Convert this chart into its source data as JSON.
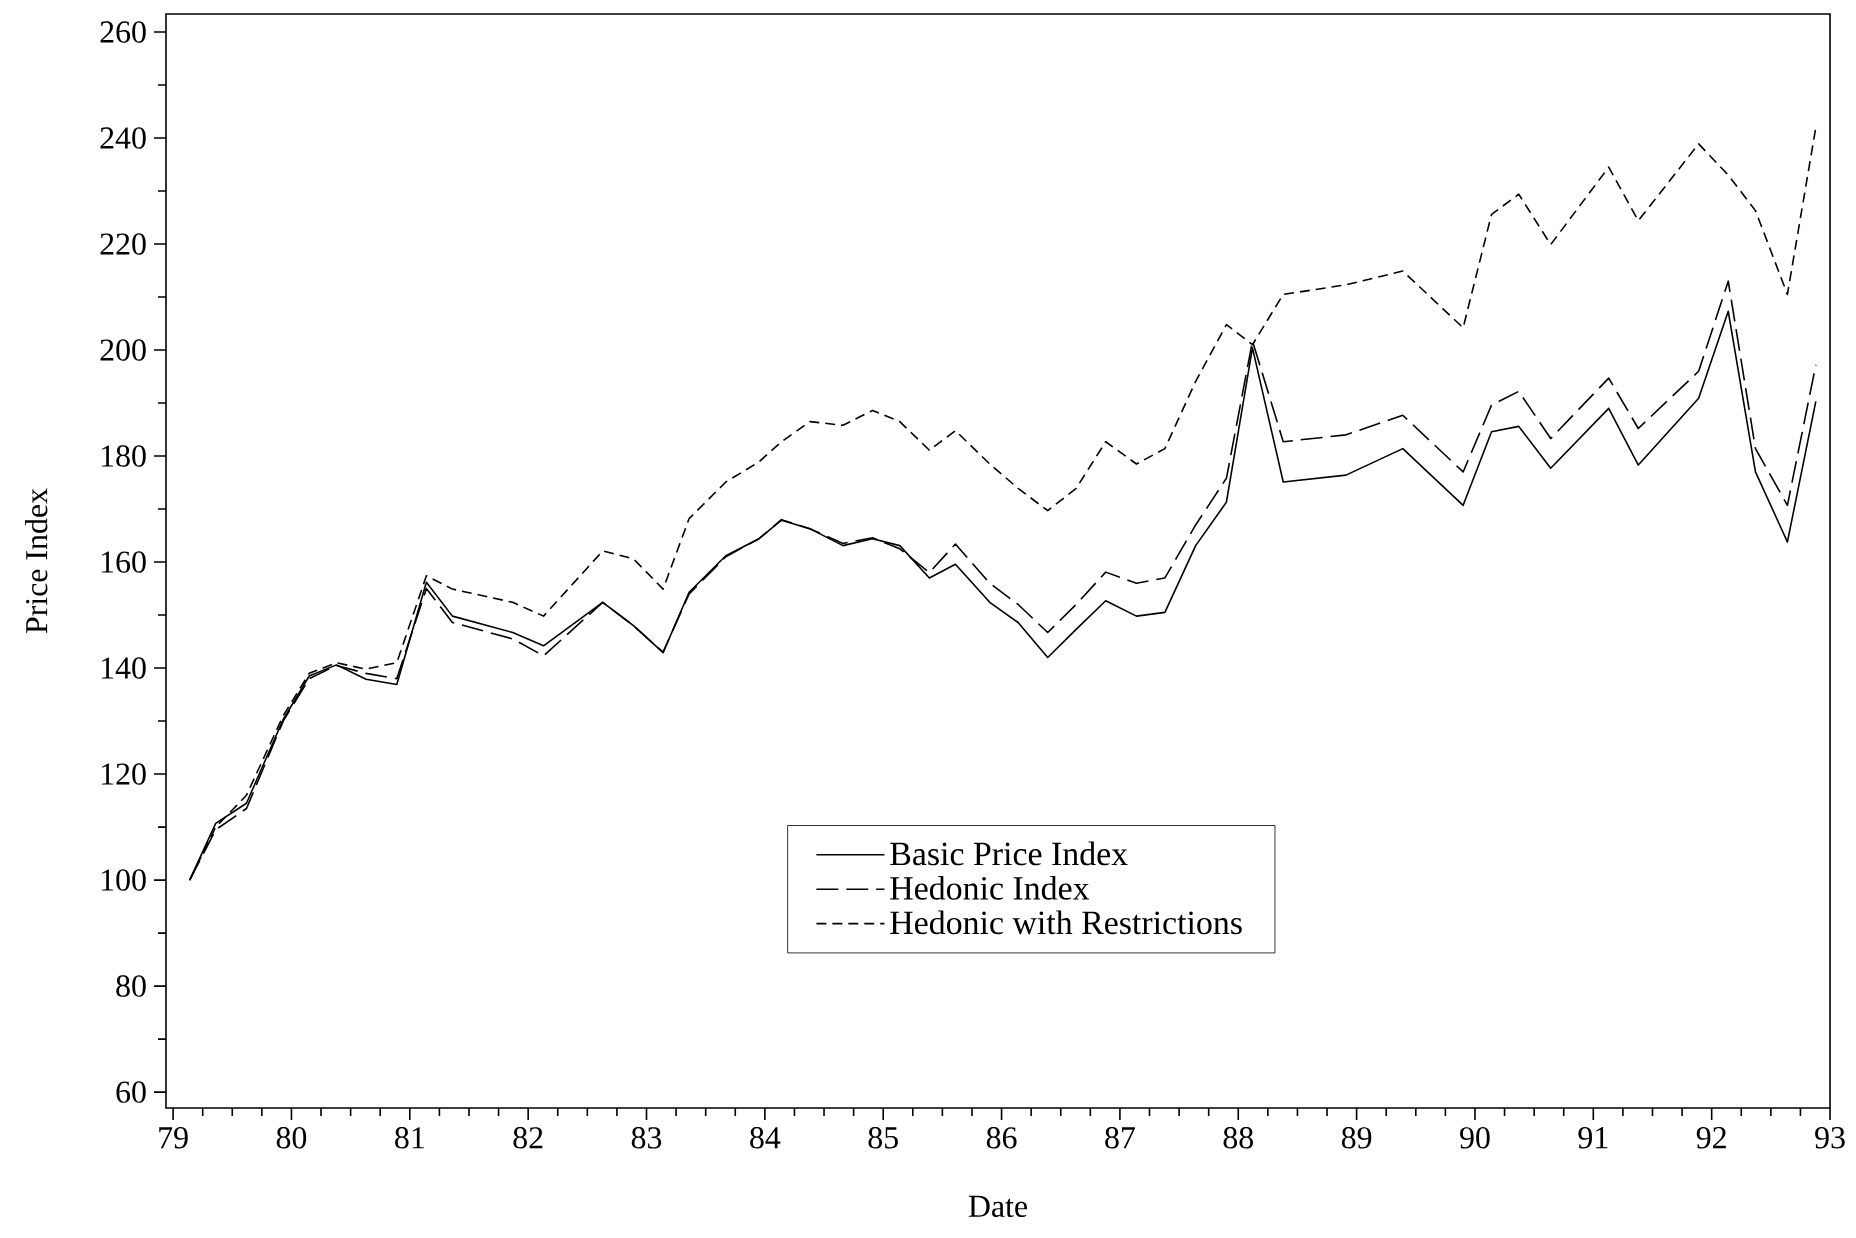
{
  "chart_data": {
    "type": "line",
    "xlabel": "Date",
    "ylabel": "Price Index",
    "x": [
      79.14,
      79.36,
      79.62,
      79.93,
      80.15,
      80.38,
      80.63,
      80.89,
      81.14,
      81.36,
      81.87,
      82.13,
      82.63,
      82.89,
      83.14,
      83.36,
      83.67,
      83.95,
      84.14,
      84.38,
      84.66,
      84.91,
      85.14,
      85.39,
      85.61,
      85.9,
      86.14,
      86.39,
      86.63,
      86.88,
      87.14,
      87.38,
      87.64,
      87.9,
      88.12,
      88.38,
      88.91,
      89.39,
      89.9,
      90.14,
      90.37,
      90.64,
      91.13,
      91.38,
      91.89,
      92.14,
      92.37,
      92.64,
      92.88
    ],
    "series": [
      {
        "name": "Basic Price Index",
        "color": "#000000",
        "line_style": "solid",
        "values": [
          100,
          110.7,
          114.5,
          130.3,
          138.5,
          140.6,
          137.9,
          136.9,
          156.2,
          149.8,
          146.7,
          144.2,
          152.4,
          148,
          142.9,
          154.3,
          161.2,
          164.4,
          167.9,
          166.3,
          163.1,
          164.4,
          163.1,
          157,
          159.6,
          152.4,
          148.6,
          142,
          147.3,
          152.7,
          149.8,
          150.5,
          163.1,
          171.3,
          200.4,
          175.1,
          176.4,
          181.4,
          170.7,
          184.6,
          185.6,
          177.7,
          189,
          178.3,
          190.9,
          207.3,
          177,
          163.8,
          190.3
        ]
      },
      {
        "name": "Hedonic Index",
        "color": "#000000",
        "line_style": "long dashed",
        "values": [
          100,
          109.5,
          113.5,
          130,
          138,
          140.5,
          139,
          138,
          155,
          148.6,
          145.5,
          142.3,
          152.4,
          148,
          143,
          154,
          161,
          164.4,
          168,
          166.3,
          163.5,
          164.6,
          162.5,
          158,
          163.4,
          156,
          152,
          146.7,
          152,
          158.1,
          156,
          157,
          167,
          175.8,
          201.7,
          182.7,
          184,
          187.7,
          177,
          189.6,
          192.2,
          183.3,
          194.7,
          185.2,
          196,
          213,
          181.4,
          170.7,
          197.2
        ]
      },
      {
        "name": "Hedonic with Restrictions",
        "color": "#000000",
        "line_style": "dashed",
        "values": [
          100,
          110,
          116,
          131,
          139,
          141,
          139.8,
          141,
          157.4,
          154.9,
          152.4,
          149.8,
          162.1,
          160.6,
          154.9,
          168.2,
          175.1,
          178.9,
          182.7,
          186.5,
          185.8,
          188.6,
          186.5,
          181.1,
          184.8,
          178.5,
          173.9,
          169.7,
          173.9,
          182.7,
          178.5,
          181.4,
          194.1,
          204.8,
          201,
          210.5,
          212.3,
          214.9,
          204.2,
          225.6,
          229.4,
          219.9,
          234.5,
          224.4,
          238.9,
          233,
          226.3,
          210.5,
          242
        ]
      }
    ],
    "xlim": [
      78.94,
      93
    ],
    "ylim": [
      57,
      263.4
    ],
    "xticks": [
      {
        "value": 79,
        "label": "79"
      },
      {
        "value": 80,
        "label": "80"
      },
      {
        "value": 81,
        "label": "81"
      },
      {
        "value": 82,
        "label": "82"
      },
      {
        "value": 83,
        "label": "83"
      },
      {
        "value": 84,
        "label": "84"
      },
      {
        "value": 85,
        "label": "85"
      },
      {
        "value": 86,
        "label": "86"
      },
      {
        "value": 87,
        "label": "87"
      },
      {
        "value": 88,
        "label": "88"
      },
      {
        "value": 89,
        "label": "89"
      },
      {
        "value": 90,
        "label": "90"
      },
      {
        "value": 91,
        "label": "91"
      },
      {
        "value": 92,
        "label": "92"
      },
      {
        "value": 93,
        "label": "93"
      }
    ],
    "yticks": [
      60,
      80,
      100,
      120,
      140,
      160,
      180,
      200,
      220,
      240,
      260
    ],
    "grid": false,
    "legend": "bottom",
    "marker": "none"
  }
}
